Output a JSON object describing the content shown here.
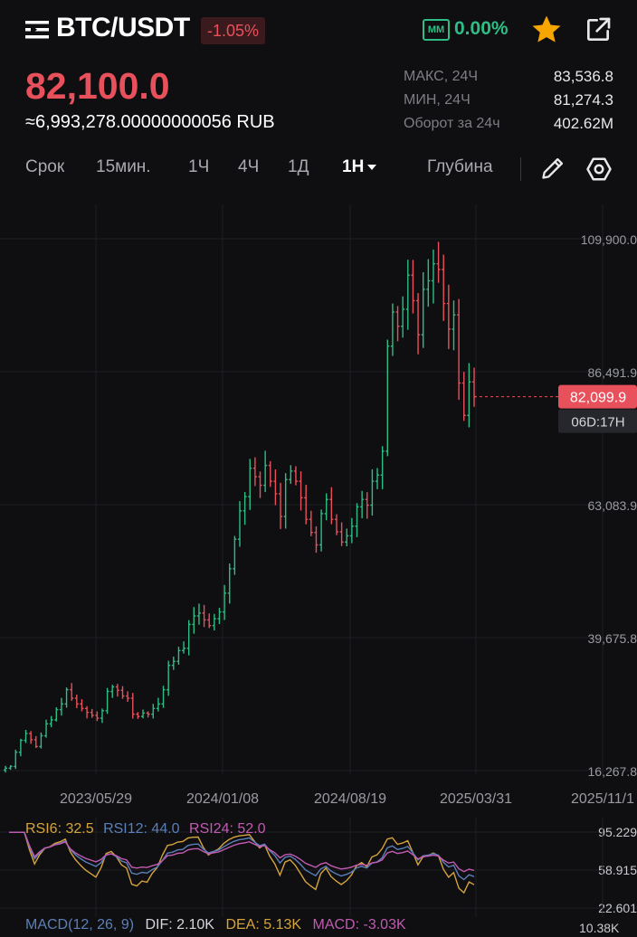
{
  "header": {
    "pair": "BTC/USDT",
    "change_pct": "-1.05%",
    "mm_label": "MM",
    "mm_value": "0.00%",
    "icons": [
      "menu-icon",
      "star-icon",
      "share-icon"
    ],
    "colors": {
      "down": "#e8505b",
      "up": "#2ebd85",
      "star": "#f7a600"
    }
  },
  "price": {
    "last": "82,100.0",
    "rub": "≈6,993,278.00000000056 RUB"
  },
  "stats": [
    {
      "label": "МАКС, 24Ч",
      "value": "83,536.8"
    },
    {
      "label": "МИН, 24Ч",
      "value": "81,274.3"
    },
    {
      "label": "Оборот за 24ч",
      "value": "402.62M"
    }
  ],
  "tabs": {
    "term": "Срок",
    "items": [
      "15мин.",
      "1Ч",
      "4Ч",
      "1Д"
    ],
    "active": "1Н",
    "depth": "Глубина",
    "icons": [
      "pencil-icon",
      "gear-icon"
    ]
  },
  "chart_data": {
    "type": "candlestick",
    "y_ticks": [
      "109,900.0",
      "86,491.9",
      "63,083.9",
      "39,675.8",
      "16,267.8"
    ],
    "ylim": [
      16267.8,
      109900.0
    ],
    "x_ticks": [
      "2023/05/29",
      "2024/01/08",
      "2024/08/19",
      "2025/03/31",
      "2025/11/1"
    ],
    "last_price_label": "82,099.9",
    "countdown": "06D:17H",
    "last_price": 82099.9,
    "close_series": [
      16700,
      17000,
      19500,
      21600,
      22800,
      21700,
      20500,
      22400,
      24500,
      25200,
      27000,
      28000,
      30500,
      29000,
      28000,
      27200,
      26500,
      26000,
      25500,
      26800,
      30200,
      31000,
      30400,
      29400,
      29000,
      26200,
      25800,
      26400,
      26200,
      27200,
      28000,
      30500,
      34800,
      35500,
      37400,
      37800,
      42000,
      43500,
      44000,
      42800,
      41800,
      43000,
      44200,
      47500,
      51800,
      57000,
      62000,
      64500,
      69500,
      68000,
      66500,
      70000,
      67200,
      65000,
      61000,
      67500,
      69000,
      67200,
      64300,
      60500,
      58200,
      56000,
      61500,
      64000,
      60500,
      58300,
      56500,
      57600,
      59300,
      62700,
      64000,
      63000,
      67200,
      68300,
      72500,
      91000,
      97000,
      94500,
      97500,
      103500,
      99000,
      93000,
      101000,
      102500,
      105500,
      104500,
      98500,
      94000,
      96500,
      84500,
      78800,
      84700,
      82100
    ],
    "colors": {
      "up": "#2ebd85",
      "down": "#e8505b"
    }
  },
  "rsi": {
    "rsi6_label": "RSI6: 32.5",
    "rsi12_label": "RSI12: 44.0",
    "rsi24_label": "RSI24: 52.0",
    "y_ticks": [
      "95.229",
      "58.915",
      "22.601"
    ],
    "ylim": [
      22.601,
      95.229
    ],
    "colors": {
      "rsi6": "#d5a33b",
      "rsi12": "#5b7fb8",
      "rsi24": "#c25ab2"
    }
  },
  "macd": {
    "label": "MACD(12, 26, 9)",
    "dif": "DIF: 2.10K",
    "dea": "DEA: 5.13K",
    "macd": "MACD: -3.03K",
    "tick": "10.38K"
  }
}
